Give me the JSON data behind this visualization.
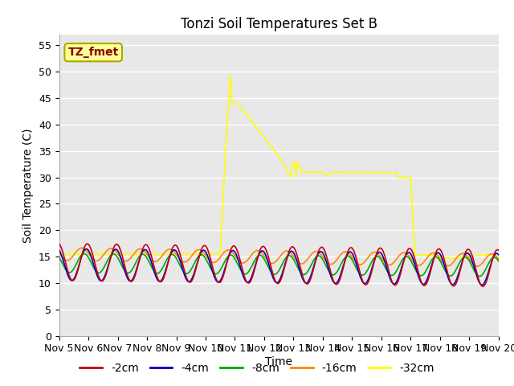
{
  "title": "Tonzi Soil Temperatures Set B",
  "xlabel": "Time",
  "ylabel": "Soil Temperature (C)",
  "ylim": [
    0,
    57
  ],
  "yticks": [
    0,
    5,
    10,
    15,
    20,
    25,
    30,
    35,
    40,
    45,
    50,
    55
  ],
  "xtick_labels": [
    "Nov 5",
    "Nov 6",
    "Nov 7",
    "Nov 8",
    "Nov 9",
    "Nov 10",
    "Nov 11",
    "Nov 12",
    "Nov 13",
    "Nov 14",
    "Nov 15",
    "Nov 16",
    "Nov 17",
    "Nov 18",
    "Nov 19",
    "Nov 20"
  ],
  "colors": {
    "-2cm": "#cc0000",
    "-4cm": "#0000cc",
    "-8cm": "#00aa00",
    "-16cm": "#ff8800",
    "-32cm": "#ffff00"
  },
  "legend_labels": [
    "-2cm",
    "-4cm",
    "-8cm",
    "-16cm",
    "-32cm"
  ],
  "annotation_label": "TZ_fmet",
  "annotation_color": "#880000",
  "annotation_bg": "#ffff99",
  "annotation_edge": "#aaaa00",
  "plot_bg": "#e8e8e8",
  "fig_bg": "#ffffff",
  "grid_color": "#ffffff",
  "title_fontsize": 12,
  "axis_label_fontsize": 10,
  "tick_fontsize": 9,
  "legend_fontsize": 10
}
